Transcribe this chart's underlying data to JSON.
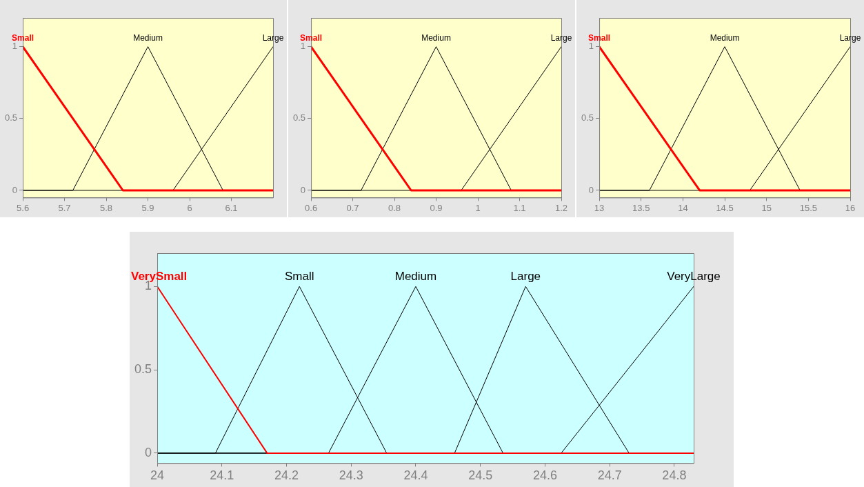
{
  "chart_data": [
    {
      "type": "line",
      "xlim": [
        5.6,
        6.2
      ],
      "xticks": [
        5.6,
        5.7,
        5.8,
        5.9,
        6,
        6.1
      ],
      "ylim": [
        -0.05,
        1.2
      ],
      "yticks": [
        0,
        0.5,
        1
      ],
      "grid": false,
      "legend": false,
      "marker": "none",
      "line_style": "solid",
      "series": [
        {
          "name": "Small",
          "color": "#ff0000",
          "x": [
            5.6,
            5.84,
            6.2
          ],
          "values": [
            1,
            0,
            0
          ]
        },
        {
          "name": "Medium",
          "color": "#000000",
          "x": [
            5.6,
            5.72,
            5.9,
            6.08,
            6.2
          ],
          "values": [
            0,
            0,
            1,
            0,
            0
          ]
        },
        {
          "name": "Large",
          "color": "#000000",
          "x": [
            5.6,
            5.96,
            6.2
          ],
          "values": [
            0,
            0,
            1
          ]
        }
      ]
    },
    {
      "type": "line",
      "xlim": [
        0.6,
        1.2
      ],
      "xticks": [
        0.6,
        0.7,
        0.8,
        0.9,
        1,
        1.1,
        1.2
      ],
      "ylim": [
        -0.05,
        1.2
      ],
      "yticks": [
        0,
        0.5,
        1
      ],
      "grid": false,
      "legend": false,
      "marker": "none",
      "line_style": "solid",
      "series": [
        {
          "name": "Small",
          "color": "#ff0000",
          "x": [
            0.6,
            0.84,
            1.2
          ],
          "values": [
            1,
            0,
            0
          ]
        },
        {
          "name": "Medium",
          "color": "#000000",
          "x": [
            0.6,
            0.72,
            0.9,
            1.08,
            1.2
          ],
          "values": [
            0,
            0,
            1,
            0,
            0
          ]
        },
        {
          "name": "Large",
          "color": "#000000",
          "x": [
            0.6,
            0.96,
            1.2
          ],
          "values": [
            0,
            0,
            1
          ]
        }
      ]
    },
    {
      "type": "line",
      "xlim": [
        13,
        16
      ],
      "xticks": [
        13,
        13.5,
        14,
        14.5,
        15,
        15.5,
        16
      ],
      "ylim": [
        -0.05,
        1.2
      ],
      "yticks": [
        0,
        0.5,
        1
      ],
      "grid": false,
      "legend": false,
      "marker": "none",
      "line_style": "solid",
      "series": [
        {
          "name": "Small",
          "color": "#ff0000",
          "x": [
            13,
            14.2,
            16
          ],
          "values": [
            1,
            0,
            0
          ]
        },
        {
          "name": "Medium",
          "color": "#000000",
          "x": [
            13,
            13.6,
            14.5,
            15.4,
            16
          ],
          "values": [
            0,
            0,
            1,
            0,
            0
          ]
        },
        {
          "name": "Large",
          "color": "#000000",
          "x": [
            13,
            14.8,
            16
          ],
          "values": [
            0,
            0,
            1
          ]
        }
      ]
    },
    {
      "type": "line",
      "xlim": [
        24,
        24.83
      ],
      "xticks": [
        24,
        24.1,
        24.2,
        24.3,
        24.4,
        24.5,
        24.6,
        24.7,
        24.8
      ],
      "ylim": [
        -0.06,
        1.2
      ],
      "yticks": [
        0,
        0.5,
        1
      ],
      "grid": false,
      "legend": false,
      "marker": "none",
      "line_style": "solid",
      "series": [
        {
          "name": "VerySmall",
          "color": "#ff0000",
          "x": [
            24,
            24.17,
            24.83
          ],
          "values": [
            1,
            0,
            0
          ]
        },
        {
          "name": "Small",
          "color": "#000000",
          "x": [
            24,
            24.09,
            24.22,
            24.355,
            24.83
          ],
          "values": [
            0,
            0,
            1,
            0,
            0
          ]
        },
        {
          "name": "Medium",
          "color": "#000000",
          "x": [
            24,
            24.265,
            24.4,
            24.535,
            24.83
          ],
          "values": [
            0,
            0,
            1,
            0,
            0
          ]
        },
        {
          "name": "Large",
          "color": "#000000",
          "x": [
            24,
            24.46,
            24.57,
            24.73,
            24.83
          ],
          "values": [
            0,
            0,
            1,
            0,
            0
          ]
        },
        {
          "name": "VeryLarge",
          "color": "#000000",
          "x": [
            24,
            24.625,
            24.83
          ],
          "values": [
            0,
            0,
            1
          ]
        }
      ]
    }
  ]
}
